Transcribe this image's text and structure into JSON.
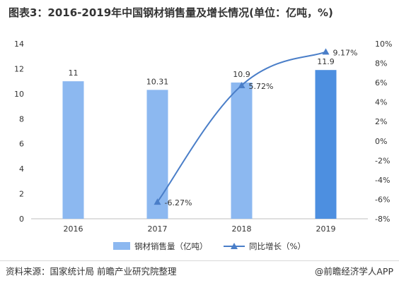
{
  "title": "图表3：2016-2019年中国钢材销售量及增长情况(单位：亿吨，%)",
  "chart_data": {
    "type": "bar",
    "categories": [
      "2016",
      "2017",
      "2018",
      "2019"
    ],
    "series": [
      {
        "name": "钢材销售量（亿吨）",
        "type": "bar",
        "axis": "left",
        "values": [
          11,
          10.31,
          10.9,
          11.9
        ],
        "labels": [
          "11",
          "10.31",
          "10.9",
          "11.9"
        ]
      },
      {
        "name": "同比增长（%）",
        "type": "line",
        "axis": "right",
        "values": [
          null,
          -6.27,
          5.72,
          9.17
        ],
        "labels": [
          "",
          "-6.27%",
          "5.72%",
          "9.17%"
        ]
      }
    ],
    "y_left": {
      "min": 0,
      "max": 14,
      "ticks": [
        "0",
        "2",
        "4",
        "6",
        "8",
        "10",
        "12",
        "14"
      ]
    },
    "y_right": {
      "min": -8,
      "max": 10,
      "ticks": [
        "-8%",
        "-6%",
        "-4%",
        "-2%",
        "0%",
        "2%",
        "4%",
        "6%",
        "8%",
        "10%"
      ]
    },
    "grid": false,
    "legend_position": "bottom",
    "colors": {
      "bar": "#8cb8f0",
      "bar_last": "#4d8fe0",
      "line": "#4a7ec8"
    }
  },
  "footer": {
    "source": "资料来源：国家统计局 前瞻产业研究院整理",
    "brand": "@前瞻经济学人APP"
  }
}
